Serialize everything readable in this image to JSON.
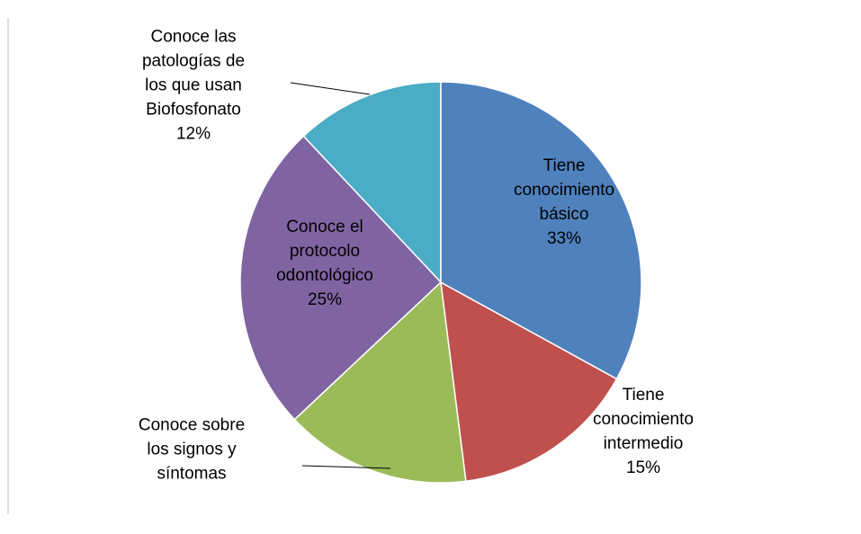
{
  "chart_data": {
    "type": "pie",
    "categories": [
      "Tiene\nconocimiento\nbásico",
      "Tiene\nconocimiento\nintermedio",
      "Conoce sobre\nlos signos y\nsíntomas",
      "Conoce el\nprotocolo\nodontológico",
      "Conoce las\npatologías de\nlos que usan\nBiofosfonato"
    ],
    "values": [
      33,
      15,
      15,
      25,
      12
    ],
    "value_labels": [
      "33%",
      "15%",
      null,
      "25%",
      "12%"
    ],
    "colors": [
      "#4f81bd",
      "#c0504d",
      "#9bbb59",
      "#8064a2",
      "#4bacc6"
    ]
  }
}
